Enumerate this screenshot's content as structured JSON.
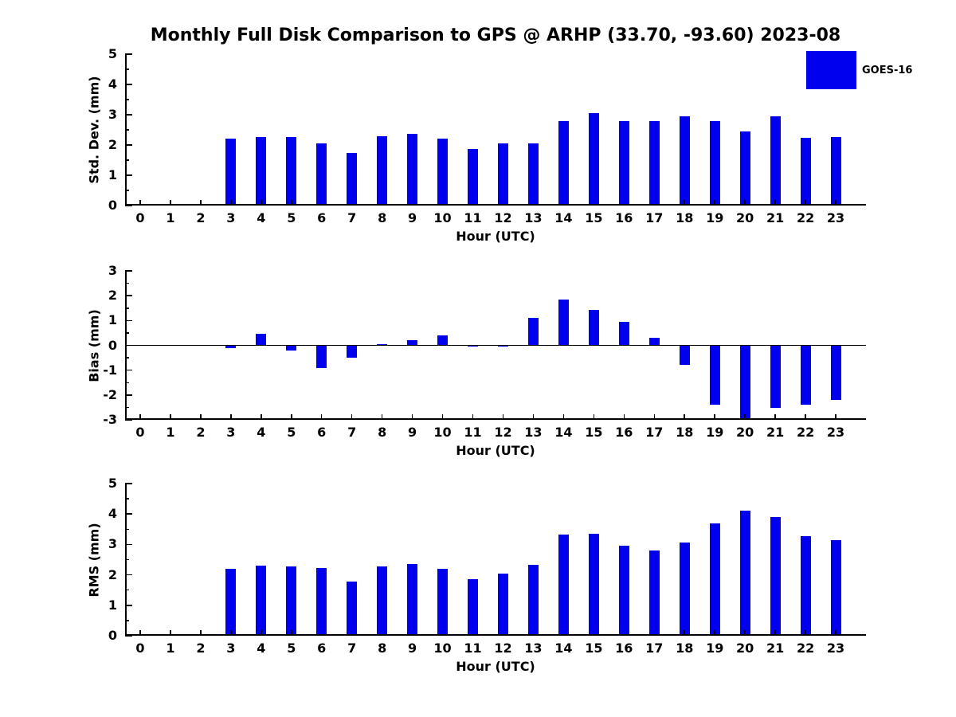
{
  "title": "Monthly Full Disk Comparison to GPS @ ARHP (33.70, -93.60) 2023-08",
  "legend": {
    "label": "GOES-16",
    "color": "#0000EE",
    "position": "top-right"
  },
  "colors": {
    "bar": "#0000EE",
    "axis": "#000000",
    "text": "#000000",
    "background": "#FFFFFF"
  },
  "chart_data": [
    {
      "type": "bar",
      "name": "std-dev",
      "ylabel": "Std. Dev. (mm)",
      "xlabel": "Hour (UTC)",
      "ylim": [
        0,
        5
      ],
      "yticks": [
        0,
        1,
        2,
        3,
        4,
        5
      ],
      "yminor_step": 0.5,
      "grid": false,
      "legend_entries": [
        "GOES-16"
      ],
      "categories": [
        0,
        1,
        2,
        3,
        4,
        5,
        6,
        7,
        8,
        9,
        10,
        11,
        12,
        13,
        14,
        15,
        16,
        17,
        18,
        19,
        20,
        21,
        22,
        23
      ],
      "series": [
        {
          "name": "GOES-16",
          "color": "#0000EE",
          "values": [
            null,
            null,
            null,
            2.2,
            2.27,
            2.27,
            2.04,
            1.73,
            2.3,
            2.36,
            2.2,
            1.86,
            2.04,
            2.06,
            2.8,
            3.06,
            2.8,
            2.8,
            2.95,
            2.8,
            2.46,
            2.95,
            2.25,
            2.27
          ]
        }
      ]
    },
    {
      "type": "bar",
      "name": "bias",
      "ylabel": "Bias (mm)",
      "xlabel": "Hour (UTC)",
      "ylim": [
        -3,
        3
      ],
      "yticks": [
        -3,
        -2,
        -1,
        0,
        1,
        2,
        3
      ],
      "yminor_step": 0.5,
      "grid": false,
      "zero_line": true,
      "legend_entries": [
        "GOES-16"
      ],
      "categories": [
        0,
        1,
        2,
        3,
        4,
        5,
        6,
        7,
        8,
        9,
        10,
        11,
        12,
        13,
        14,
        15,
        16,
        17,
        18,
        19,
        20,
        21,
        22,
        23
      ],
      "series": [
        {
          "name": "GOES-16",
          "color": "#0000EE",
          "values": [
            null,
            null,
            null,
            -0.1,
            0.45,
            -0.2,
            -0.9,
            -0.5,
            0.05,
            0.2,
            0.4,
            -0.05,
            -0.03,
            1.1,
            1.85,
            1.42,
            0.95,
            0.3,
            -0.78,
            -2.4,
            -3.0,
            -2.52,
            -2.38,
            -2.2
          ]
        }
      ]
    },
    {
      "type": "bar",
      "name": "rms",
      "ylabel": "RMS (mm)",
      "xlabel": "Hour (UTC)",
      "ylim": [
        0,
        5
      ],
      "yticks": [
        0,
        1,
        2,
        3,
        4,
        5
      ],
      "yminor_step": 0.5,
      "grid": false,
      "legend_entries": [
        "GOES-16"
      ],
      "categories": [
        0,
        1,
        2,
        3,
        4,
        5,
        6,
        7,
        8,
        9,
        10,
        11,
        12,
        13,
        14,
        15,
        16,
        17,
        18,
        19,
        20,
        21,
        22,
        23
      ],
      "series": [
        {
          "name": "GOES-16",
          "color": "#0000EE",
          "values": [
            null,
            null,
            null,
            2.2,
            2.3,
            2.28,
            2.23,
            1.78,
            2.28,
            2.36,
            2.2,
            1.87,
            2.05,
            2.33,
            3.32,
            3.35,
            2.95,
            2.8,
            3.05,
            3.68,
            4.1,
            3.9,
            3.27,
            3.13
          ]
        }
      ]
    }
  ]
}
